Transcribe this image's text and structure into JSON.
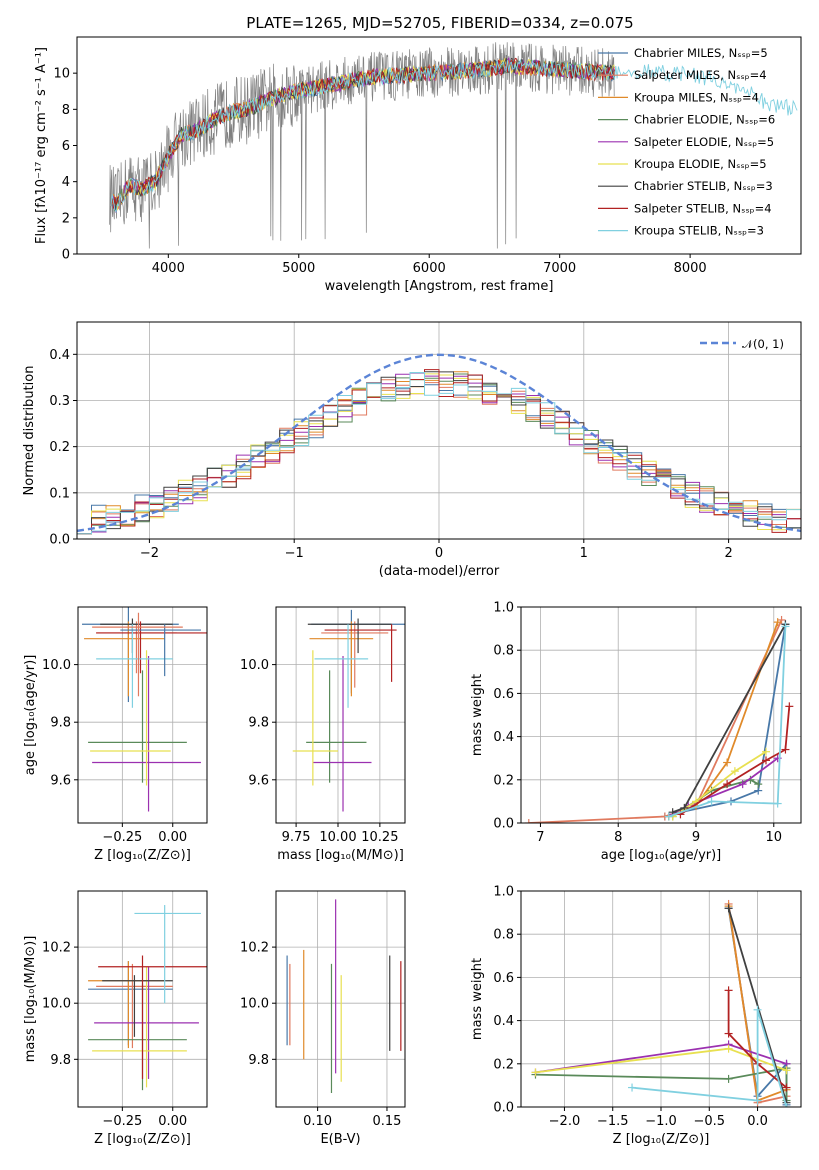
{
  "figure": {
    "title": "PLATE=1265, MJD=52705, FIBERID=0334, z=0.075"
  },
  "colors": {
    "data": "#808080",
    "fits": [
      "#4878a8",
      "#e07a5f",
      "#e08a2a",
      "#5a8a5a",
      "#9b30b0",
      "#e8e050",
      "#404040",
      "#b22222",
      "#80d0e0"
    ],
    "uncertainty_lines": [
      "#6a6aff",
      "#2ca02c",
      "#d62728",
      "#9467bd",
      "#8c564b",
      "#e377c2",
      "#7f7f7f",
      "#bcbd22",
      "#17becf"
    ],
    "normal": "#5b84d6"
  },
  "chart_data": [
    {
      "id": "spectrum",
      "type": "line",
      "title": "PLATE=1265, MJD=52705, FIBERID=0334, z=0.075",
      "xlabel": "wavelength [Angstrom, rest frame]",
      "ylabel": "Flux [fλ10⁻¹⁷ erg cm⁻² s⁻¹ A⁻¹]",
      "xlim": [
        3300,
        8850
      ],
      "ylim": [
        0,
        12
      ],
      "xticks": [
        4000,
        5000,
        6000,
        7000,
        8000
      ],
      "yticks": [
        0,
        2,
        4,
        6,
        8,
        10
      ],
      "grid": false,
      "legend_position": "right",
      "legend": [
        "Chabrier MILES, N_SSP=5",
        "Salpeter MILES, N_SSP=4",
        "Kroupa MILES, N_SSP=4",
        "Chabrier ELODIE, N_SSP=6",
        "Salpeter ELODIE, N_SSP=5",
        "Kroupa ELODIE, N_SSP=5",
        "Chabrier STELIB, N_SSP=3",
        "Salpeter STELIB, N_SSP=4",
        "Kroupa STELIB, N_SSP=3"
      ],
      "data_envelope": {
        "x": [
          3550,
          3600,
          3700,
          3800,
          3900,
          4000,
          4100,
          4200,
          4300,
          4400,
          4500,
          4600,
          4700,
          4800,
          4900,
          5000,
          5200,
          5400,
          5600,
          5800,
          6000,
          6200,
          6400,
          6600,
          6800,
          7000,
          7200,
          7400,
          7600,
          7800,
          8000,
          8200,
          8400,
          8600,
          8800
        ],
        "y": [
          3.2,
          2.7,
          3.8,
          3.6,
          4.0,
          5.4,
          6.6,
          6.8,
          7.2,
          7.6,
          7.9,
          8.0,
          8.3,
          8.6,
          8.9,
          9.0,
          9.3,
          9.6,
          9.8,
          9.9,
          10.0,
          10.1,
          10.2,
          10.4,
          10.3,
          10.2,
          10.1,
          10.0,
          10.1,
          10.0,
          9.9,
          9.6,
          9.1,
          8.3,
          8.0
        ]
      }
    },
    {
      "id": "residuals",
      "type": "histogram",
      "xlabel": "(data-model)/error",
      "ylabel": "Normed distribution",
      "xlim": [
        -2.5,
        2.5
      ],
      "ylim": [
        0,
        0.47
      ],
      "xticks": [
        -2,
        -1,
        0,
        1,
        2
      ],
      "yticks": [
        0.0,
        0.1,
        0.2,
        0.3,
        0.4
      ],
      "grid": true,
      "legend_position": "top-right",
      "legend": [
        "𝒩(0, 1)"
      ],
      "normal_curve": {
        "mean": 0,
        "sigma": 1
      },
      "bin_width": 0.1
    },
    {
      "id": "age-vs-Z",
      "type": "errorbar",
      "xlabel": "Z [log₁₀(Z/Z⊙)]",
      "ylabel": "age  [log₁₀(age/yr)]",
      "xlim": [
        -0.47,
        0.17
      ],
      "ylim": [
        9.45,
        10.2
      ],
      "xticks": [
        -0.25,
        0.0
      ],
      "yticks": [
        9.6,
        9.8,
        10.0
      ],
      "grid": true,
      "points": [
        {
          "x": -0.22,
          "y": 10.14,
          "xe": [
            0.23,
            0.25
          ],
          "ye": [
            0.27,
            0.06
          ]
        },
        {
          "x": -0.18,
          "y": 10.11,
          "xe": [
            0.2,
            0.2
          ],
          "ye": [
            0.14,
            0.04
          ]
        },
        {
          "x": -0.22,
          "y": 10.09,
          "xe": [
            0.22,
            0.18
          ],
          "ye": [
            0.2,
            0.06
          ]
        },
        {
          "x": -0.15,
          "y": 9.73,
          "xe": [
            0.27,
            0.22
          ],
          "ye": [
            0.14,
            0.25
          ]
        },
        {
          "x": -0.12,
          "y": 9.66,
          "xe": [
            0.28,
            0.26
          ],
          "ye": [
            0.17,
            0.37
          ]
        },
        {
          "x": -0.13,
          "y": 9.7,
          "xe": [
            0.28,
            0.12
          ],
          "ye": [
            0.12,
            0.35
          ]
        },
        {
          "x": -0.2,
          "y": 10.14,
          "xe": [
            0.16,
            0.2
          ],
          "ye": [
            0.1,
            0.02
          ]
        },
        {
          "x": -0.16,
          "y": 10.11,
          "xe": [
            0.22,
            0.36
          ],
          "ye": [
            0.14,
            0.04
          ]
        },
        {
          "x": -0.2,
          "y": 10.02,
          "xe": [
            0.18,
            0.2
          ],
          "ye": [
            0.17,
            0.12
          ]
        },
        {
          "x": -0.04,
          "y": 10.12,
          "xe": [
            0.22,
            0.18
          ],
          "ye": [
            0.16,
            0.02
          ]
        },
        {
          "x": -0.17,
          "y": 10.13,
          "xe": [
            0.23,
            0.22
          ],
          "ye": [
            0.24,
            0.05
          ]
        }
      ]
    },
    {
      "id": "age-vs-mass",
      "type": "errorbar",
      "xlabel": "mass [log₁₀(M/M⊙)]",
      "ylabel": "",
      "xlim": [
        9.63,
        10.4
      ],
      "ylim": [
        9.45,
        10.2
      ],
      "xticks": [
        9.75,
        10.0,
        10.25
      ],
      "yticks": [
        9.6,
        9.8,
        10.0
      ],
      "grid": true,
      "points": [
        {
          "x": 10.08,
          "y": 10.14,
          "xe": [
            0.24,
            0.34
          ],
          "ye": [
            0.24,
            0.05
          ]
        },
        {
          "x": 10.1,
          "y": 10.11,
          "xe": [
            0.2,
            0.2
          ],
          "ye": [
            0.19,
            0.04
          ]
        },
        {
          "x": 10.08,
          "y": 10.09,
          "xe": [
            0.25,
            0.13
          ],
          "ye": [
            0.2,
            0.06
          ]
        },
        {
          "x": 9.95,
          "y": 9.73,
          "xe": [
            0.14,
            0.22
          ],
          "ye": [
            0.14,
            0.25
          ]
        },
        {
          "x": 10.03,
          "y": 9.66,
          "xe": [
            0.18,
            0.17
          ],
          "ye": [
            0.17,
            0.37
          ]
        },
        {
          "x": 9.85,
          "y": 9.7,
          "xe": [
            0.12,
            0.15
          ],
          "ye": [
            0.12,
            0.35
          ]
        },
        {
          "x": 10.12,
          "y": 10.14,
          "xe": [
            0.3,
            0.2
          ],
          "ye": [
            0.1,
            0.02
          ]
        },
        {
          "x": 10.32,
          "y": 10.12,
          "xe": [
            0.4,
            0.03
          ],
          "ye": [
            0.18,
            0.02
          ]
        },
        {
          "x": 10.06,
          "y": 10.02,
          "xe": [
            0.2,
            0.12
          ],
          "ye": [
            0.17,
            0.12
          ]
        }
      ]
    },
    {
      "id": "weights-vs-age",
      "type": "line",
      "xlabel": "age  [log₁₀(age/yr)]",
      "ylabel": "mass weight",
      "xlim": [
        6.75,
        10.35
      ],
      "ylim": [
        0,
        1
      ],
      "xticks": [
        7,
        8,
        9,
        10
      ],
      "yticks": [
        0.0,
        0.2,
        0.4,
        0.6,
        0.8,
        1.0
      ],
      "grid": true,
      "series": [
        {
          "x": [
            8.6,
            8.8,
            9.45,
            9.8,
            10.15
          ],
          "y": [
            0.03,
            0.05,
            0.1,
            0.15,
            0.92
          ]
        },
        {
          "x": [
            6.85,
            8.6,
            9.0,
            10.1
          ],
          "y": [
            0.0,
            0.03,
            0.08,
            0.94
          ]
        },
        {
          "x": [
            8.65,
            9.0,
            9.4,
            10.05
          ],
          "y": [
            0.03,
            0.08,
            0.28,
            0.93
          ]
        },
        {
          "x": [
            8.7,
            9.2,
            9.7,
            9.8
          ],
          "y": [
            0.03,
            0.15,
            0.2,
            0.18
          ]
        },
        {
          "x": [
            8.7,
            8.9,
            9.6,
            10.05
          ],
          "y": [
            0.04,
            0.08,
            0.18,
            0.3
          ]
        },
        {
          "x": [
            8.7,
            9.0,
            9.5,
            9.9
          ],
          "y": [
            0.03,
            0.1,
            0.24,
            0.33
          ]
        },
        {
          "x": [
            8.7,
            8.85,
            10.15
          ],
          "y": [
            0.05,
            0.07,
            0.92
          ]
        },
        {
          "x": [
            8.8,
            9.4,
            9.9,
            10.15,
            10.2
          ],
          "y": [
            0.04,
            0.18,
            0.29,
            0.34,
            0.54
          ]
        },
        {
          "x": [
            8.65,
            9.2,
            10.05,
            10.15
          ],
          "y": [
            0.03,
            0.1,
            0.09,
            0.91
          ]
        }
      ]
    },
    {
      "id": "mass-vs-Z",
      "type": "errorbar",
      "xlabel": "Z [log₁₀(Z/Z⊙)]",
      "ylabel": "mass [log₁₀(M/M⊙)]",
      "xlim": [
        -0.47,
        0.17
      ],
      "ylim": [
        9.63,
        10.4
      ],
      "xticks": [
        -0.25,
        0.0
      ],
      "yticks": [
        9.8,
        10.0,
        10.2
      ],
      "grid": true,
      "points": [
        {
          "x": -0.22,
          "y": 10.05,
          "xe": [
            0.2,
            0.22
          ],
          "ye": [
            0.2,
            0.1
          ]
        },
        {
          "x": -0.2,
          "y": 10.06,
          "xe": [
            0.18,
            0.2
          ],
          "ye": [
            0.22,
            0.08
          ]
        },
        {
          "x": -0.22,
          "y": 10.08,
          "xe": [
            0.2,
            0.18
          ],
          "ye": [
            0.24,
            0.07
          ]
        },
        {
          "x": -0.15,
          "y": 9.87,
          "xe": [
            0.27,
            0.22
          ],
          "ye": [
            0.18,
            0.2
          ]
        },
        {
          "x": -0.12,
          "y": 9.93,
          "xe": [
            0.27,
            0.25
          ],
          "ye": [
            0.2,
            0.2
          ]
        },
        {
          "x": -0.13,
          "y": 9.83,
          "xe": [
            0.27,
            0.2
          ],
          "ye": [
            0.13,
            0.3
          ]
        },
        {
          "x": -0.19,
          "y": 10.08,
          "xe": [
            0.16,
            0.19
          ],
          "ye": [
            0.2,
            0.02
          ]
        },
        {
          "x": -0.15,
          "y": 10.13,
          "xe": [
            0.22,
            0.36
          ],
          "ye": [
            0.4,
            0.04
          ]
        },
        {
          "x": -0.04,
          "y": 10.32,
          "xe": [
            0.15,
            0.18
          ],
          "ye": [
            0.32,
            0.03
          ]
        }
      ]
    },
    {
      "id": "mass-vs-EBV",
      "type": "errorbar",
      "xlabel": "E(B-V)",
      "ylabel": "",
      "xlim": [
        0.07,
        0.163
      ],
      "ylim": [
        9.63,
        10.4
      ],
      "xticks": [
        0.1,
        0.15
      ],
      "yticks": [
        9.8,
        10.0,
        10.2
      ],
      "grid": true,
      "points": [
        {
          "x": 0.078,
          "y": 10.05,
          "ye": [
            0.2,
            0.12
          ]
        },
        {
          "x": 0.08,
          "y": 10.0,
          "ye": [
            0.15,
            0.14
          ]
        },
        {
          "x": 0.09,
          "y": 10.05,
          "ye": [
            0.25,
            0.14
          ]
        },
        {
          "x": 0.11,
          "y": 9.9,
          "ye": [
            0.22,
            0.24
          ]
        },
        {
          "x": 0.113,
          "y": 10.05,
          "ye": [
            0.3,
            0.32
          ]
        },
        {
          "x": 0.117,
          "y": 9.9,
          "ye": [
            0.18,
            0.2
          ]
        },
        {
          "x": 0.152,
          "y": 10.0,
          "ye": [
            0.17,
            0.17
          ]
        },
        {
          "x": 0.16,
          "y": 9.98,
          "ye": [
            0.15,
            0.17
          ]
        }
      ]
    },
    {
      "id": "weights-vs-Z",
      "type": "line",
      "xlabel": "Z [log₁₀(Z/Z⊙)]",
      "ylabel": "mass weight",
      "xlim": [
        -2.45,
        0.45
      ],
      "ylim": [
        0,
        1
      ],
      "xticks": [
        -2.0,
        -1.5,
        -1.0,
        -0.5,
        0.0
      ],
      "yticks": [
        0.0,
        0.2,
        0.4,
        0.6,
        0.8,
        1.0
      ],
      "grid": true,
      "series": [
        {
          "x": [
            -0.3,
            0.0,
            0.3,
            0.3
          ],
          "y": [
            0.92,
            0.05,
            0.2,
            0.01
          ]
        },
        {
          "x": [
            -0.3,
            0.0,
            0.3
          ],
          "y": [
            0.94,
            0.02,
            0.05
          ]
        },
        {
          "x": [
            -0.3,
            0.0,
            0.3
          ],
          "y": [
            0.93,
            0.03,
            0.08
          ]
        },
        {
          "x": [
            -2.3,
            -0.3,
            0.3,
            0.3
          ],
          "y": [
            0.15,
            0.13,
            0.18,
            0.03
          ]
        },
        {
          "x": [
            -2.3,
            -0.3,
            0.3
          ],
          "y": [
            0.16,
            0.29,
            0.2
          ]
        },
        {
          "x": [
            -2.3,
            -0.3,
            0.3
          ],
          "y": [
            0.16,
            0.27,
            0.17
          ]
        },
        {
          "x": [
            -0.3,
            0.3
          ],
          "y": [
            0.92,
            0.02
          ]
        },
        {
          "x": [
            -0.3,
            -0.3,
            0.0,
            0.3
          ],
          "y": [
            0.54,
            0.34,
            0.2,
            0.09
          ]
        },
        {
          "x": [
            -1.3,
            0.0,
            0.0,
            0.3
          ],
          "y": [
            0.09,
            0.03,
            0.45,
            0.0
          ]
        }
      ]
    }
  ]
}
